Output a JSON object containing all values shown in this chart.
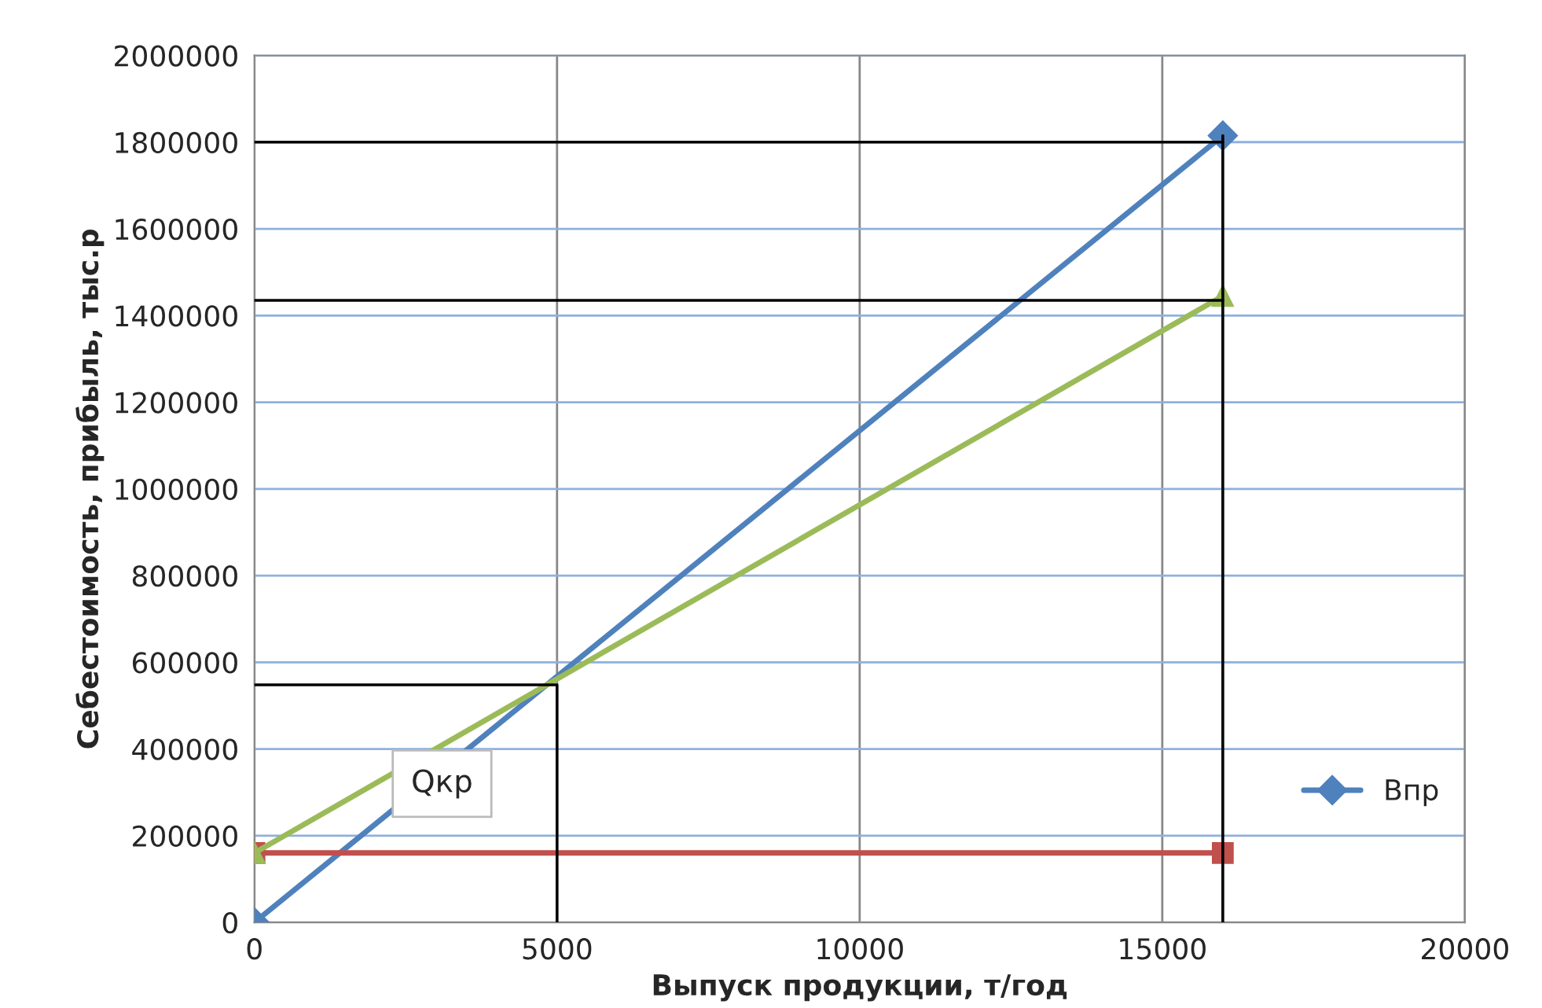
{
  "chart_data": {
    "type": "line",
    "xlabel": "Выпуск продукции, т/год",
    "ylabel": "Себестоимость, прибыль, тыс.р",
    "xlim": [
      0,
      20000
    ],
    "xticks": [
      0,
      5000,
      10000,
      15000,
      20000
    ],
    "ylim": [
      0,
      2000000
    ],
    "yticks": [
      0,
      200000,
      400000,
      600000,
      800000,
      1000000,
      1200000,
      1400000,
      1600000,
      1800000,
      2000000
    ],
    "grid": true,
    "legend": "right",
    "annotations": [
      "Qкр"
    ],
    "series": [
      {
        "name": "Впр",
        "color": "#4f81bd",
        "x": [
          0,
          16000
        ],
        "values": [
          0,
          1815000
        ],
        "marker": "diamond"
      },
      {
        "color": "#c0504d",
        "x": [
          0,
          16000
        ],
        "values": [
          160000,
          160000
        ],
        "marker": "square"
      },
      {
        "color": "#9bbb59",
        "x": [
          0,
          16000
        ],
        "values": [
          160000,
          1445000
        ],
        "marker": "triangle"
      },
      {
        "color": "#000000",
        "x": [
          0,
          16000
        ],
        "values": [
          1800000,
          1800000
        ],
        "marker": "none"
      },
      {
        "color": "#000000",
        "x": [
          0,
          16000
        ],
        "values": [
          1435000,
          1435000
        ],
        "marker": "none"
      },
      {
        "color": "#000000",
        "x": [
          16000,
          16000
        ],
        "values": [
          0,
          1815000
        ],
        "marker": "none"
      },
      {
        "color": "#000000",
        "x": [
          0,
          5000,
          5000
        ],
        "values": [
          548000,
          548000,
          0
        ],
        "marker": "none"
      }
    ]
  }
}
